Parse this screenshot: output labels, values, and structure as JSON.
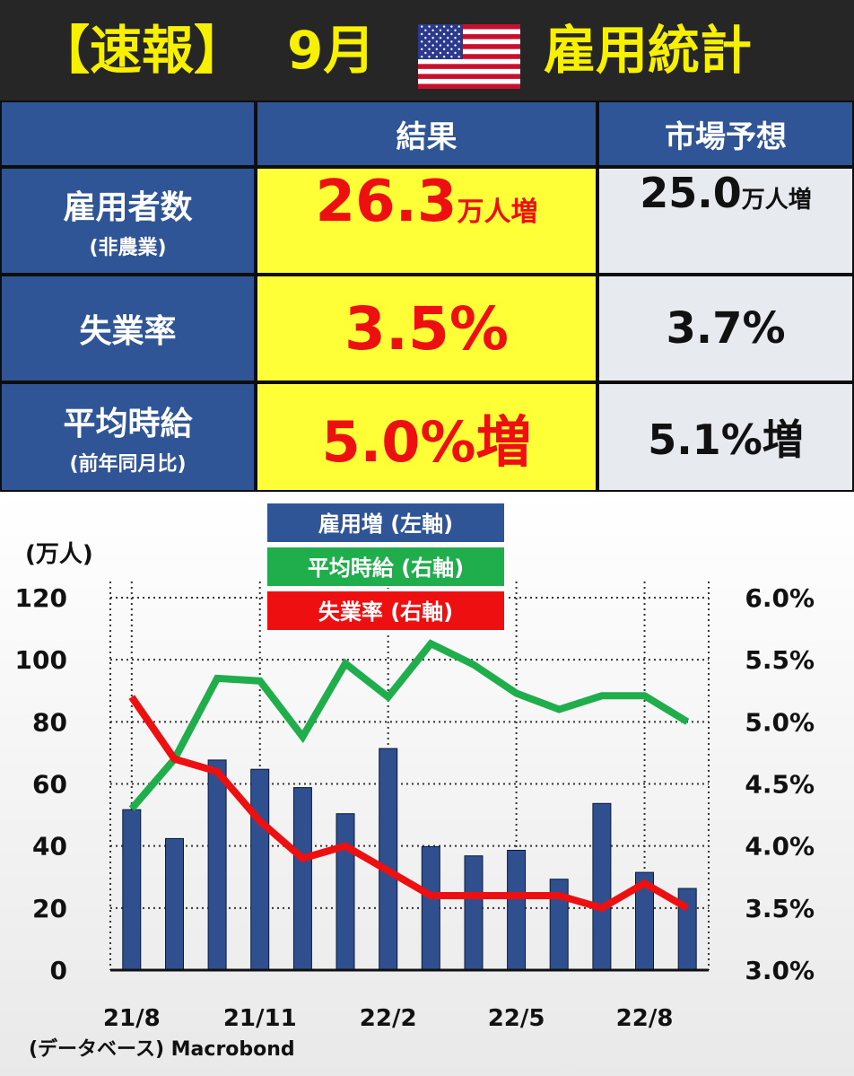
{
  "header": {
    "title_prefix": "【速報】",
    "month": "9月",
    "title_suffix": "雇用統計",
    "flag_icon": "us-flag-icon"
  },
  "table": {
    "col_headers": [
      "結果",
      "市場予想"
    ],
    "rows": [
      {
        "label": "雇用者数",
        "sublabel": "(非農業)",
        "result_value": "26.3",
        "result_unit": "万人増",
        "forecast_value": "25.0",
        "forecast_unit": "万人増"
      },
      {
        "label": "失業率",
        "sublabel": "",
        "result_value": "3.5%",
        "result_unit": "",
        "forecast_value": "3.7%",
        "forecast_unit": ""
      },
      {
        "label": "平均時給",
        "sublabel": "(前年同月比)",
        "result_value": "5.0%増",
        "result_unit": "",
        "forecast_value": "5.1%増",
        "forecast_unit": ""
      }
    ],
    "colors": {
      "header_bg": "#2f5597",
      "result_bg": "#ffff38",
      "result_text": "#ee1010",
      "forecast_bg": "#e7eaef"
    }
  },
  "chart_data": {
    "type": "bar",
    "left_unit": "(万人)",
    "source": "(データベース) Macrobond",
    "x": [
      "21/8",
      "21/9",
      "21/10",
      "21/11",
      "21/12",
      "22/1",
      "22/2",
      "22/3",
      "22/4",
      "22/5",
      "22/6",
      "22/7",
      "22/8",
      "22/9"
    ],
    "x_tick_labels": [
      "21/8",
      "21/11",
      "22/2",
      "22/5",
      "22/8"
    ],
    "y_left_ticks": [
      "0",
      "20",
      "40",
      "60",
      "80",
      "100",
      "120"
    ],
    "y_right_ticks": [
      "3.0%",
      "3.5%",
      "4.0%",
      "4.5%",
      "5.0%",
      "5.5%",
      "6.0%"
    ],
    "ylim_left": [
      0,
      120
    ],
    "ylim_right": [
      3.0,
      6.0
    ],
    "grid": "dotted",
    "legend_position": "top-center",
    "series": [
      {
        "name": "雇用増 (左軸)",
        "type": "bar",
        "axis": "left",
        "color": "#2f4f8f",
        "values": [
          51.7,
          42.4,
          67.7,
          64.7,
          58.8,
          50.4,
          71.4,
          39.8,
          36.8,
          38.6,
          29.3,
          53.7,
          31.5,
          26.3
        ]
      },
      {
        "name": "平均時給 (右軸)",
        "type": "line",
        "axis": "right",
        "color": "#1fae4b",
        "values": [
          4.3,
          4.7,
          5.35,
          5.33,
          4.88,
          5.47,
          5.2,
          5.63,
          5.46,
          5.23,
          5.1,
          5.21,
          5.21,
          5.0
        ]
      },
      {
        "name": "失業率 (右軸)",
        "type": "line",
        "axis": "right",
        "color": "#ee1010",
        "values": [
          5.2,
          4.7,
          4.6,
          4.2,
          3.9,
          4.0,
          3.8,
          3.6,
          3.6,
          3.6,
          3.6,
          3.5,
          3.7,
          3.5
        ]
      }
    ]
  }
}
